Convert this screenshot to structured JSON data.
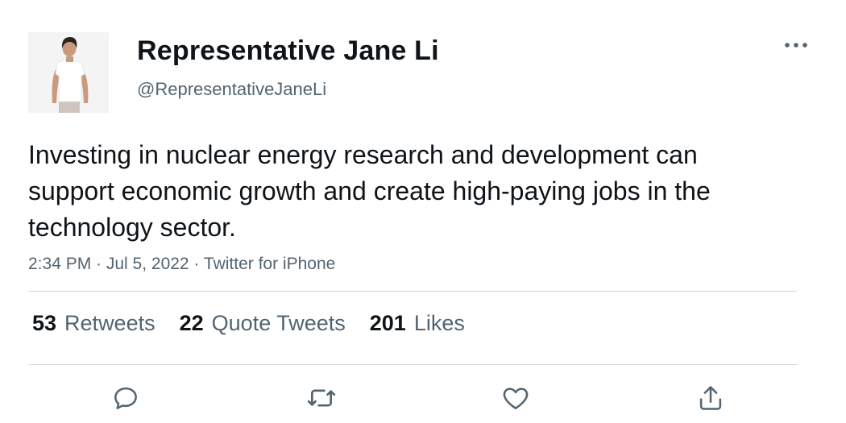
{
  "user": {
    "display_name": "Representative Jane Li",
    "handle": "@RepresentativeJaneLi",
    "avatar_icon": "person-photo-avatar"
  },
  "tweet": {
    "text": "Investing in nuclear energy research and development can support economic growth and create high-paying jobs in the technology sector.",
    "meta": "2:34 PM · Jul 5, 2022 · Twitter for iPhone"
  },
  "stats": {
    "retweets": {
      "count": "53",
      "label": "Retweets"
    },
    "quotes": {
      "count": "22",
      "label": "Quote Tweets"
    },
    "likes": {
      "count": "201",
      "label": "Likes"
    }
  },
  "actions": {
    "reply_icon": "reply-icon",
    "retweet_icon": "retweet-icon",
    "like_icon": "heart-icon",
    "share_icon": "share-icon"
  },
  "colors": {
    "primary_text": "#0f1419",
    "secondary_text": "#536471",
    "divider": "#cfd9de"
  }
}
